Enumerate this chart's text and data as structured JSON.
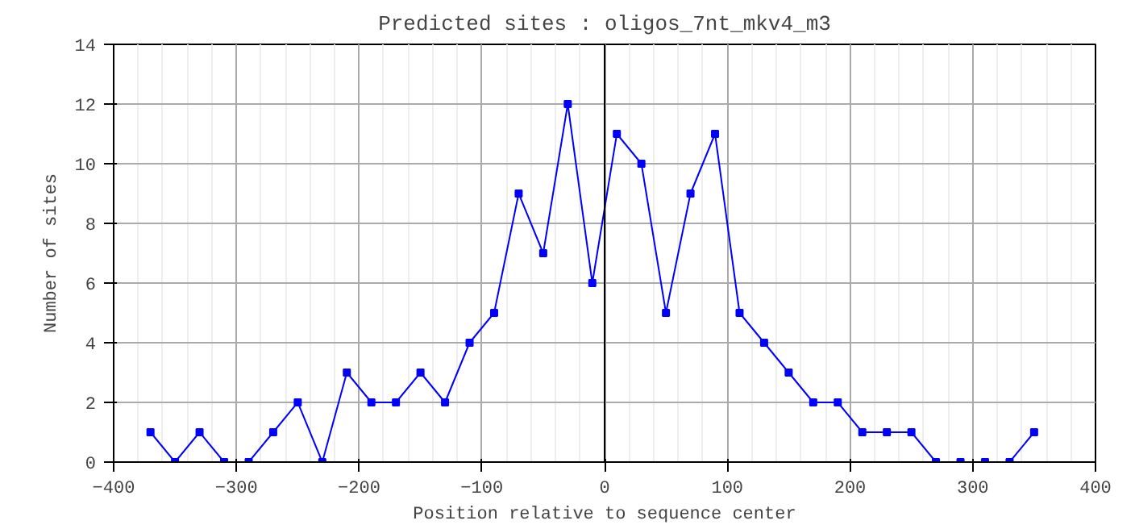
{
  "chart_data": {
    "type": "line",
    "title": "Predicted sites : oligos_7nt_mkv4_m3",
    "xlabel": "Position relative to sequence center",
    "ylabel": "Number of sites",
    "x": [
      -370,
      -350,
      -330,
      -310,
      -290,
      -270,
      -250,
      -230,
      -210,
      -190,
      -170,
      -150,
      -130,
      -110,
      -90,
      -70,
      -50,
      -30,
      -10,
      10,
      30,
      50,
      70,
      90,
      110,
      130,
      150,
      170,
      190,
      210,
      230,
      250,
      270,
      290,
      310,
      330,
      350
    ],
    "series": [
      {
        "color": "#0000ff",
        "values": [
          1,
          0,
          1,
          0,
          0,
          1,
          2,
          0,
          3,
          2,
          2,
          3,
          2,
          4,
          5,
          9,
          7,
          12,
          6,
          11,
          10,
          5,
          9,
          11,
          5,
          4,
          3,
          2,
          2,
          1,
          1,
          1,
          0,
          0,
          0,
          0,
          1
        ]
      }
    ],
    "xlim": [
      -400,
      400
    ],
    "xticks": [
      -400,
      -300,
      -200,
      -100,
      0,
      100,
      200,
      300,
      400
    ],
    "ylim": [
      0,
      14
    ],
    "yticks": [
      0,
      2,
      4,
      6,
      8,
      10,
      12,
      14
    ],
    "ref_lines": [
      {
        "axis": "x",
        "value": 0,
        "color": "#000000"
      }
    ],
    "grid": true,
    "marker": "square",
    "line_style": "solid"
  }
}
